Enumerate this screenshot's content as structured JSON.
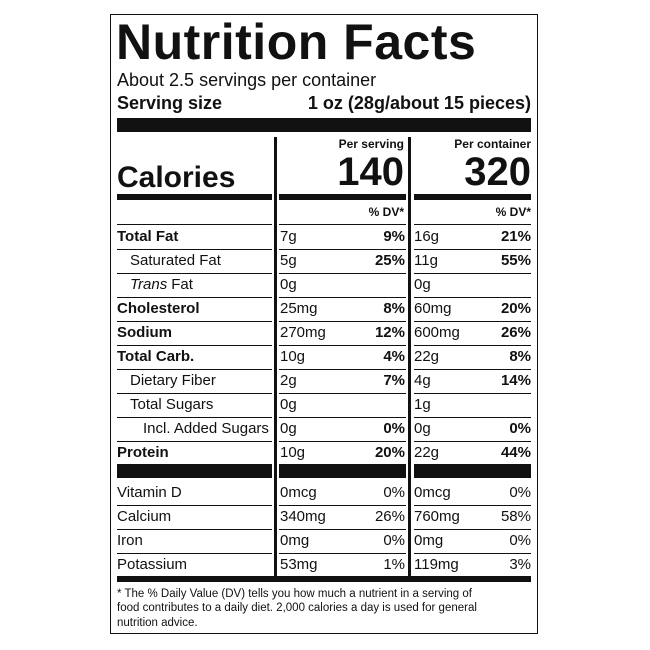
{
  "label": {
    "title": "Nutrition Facts",
    "servings": "About 2.5 servings per container",
    "serving_size_label": "Serving size",
    "serving_size_value": "1 oz (28g/about 15 pieces)",
    "per_serving": "Per serving",
    "per_container": "Per container",
    "calories_label": "Calories",
    "calories_serving": 140,
    "calories_container": 320,
    "dv_header": "% DV*",
    "rows": [
      {
        "name": "Total Fat",
        "bold": true,
        "indent": 0,
        "serving": "7g",
        "serving_dv": "9%",
        "container": "16g",
        "container_dv": "21%"
      },
      {
        "name": "Saturated Fat",
        "bold": false,
        "indent": 1,
        "serving": "5g",
        "serving_dv": "25%",
        "container": "11g",
        "container_dv": "55%"
      },
      {
        "name_italic": "Trans",
        "name": "Fat",
        "bold": false,
        "indent": 1,
        "serving": "0g",
        "container": "0g"
      },
      {
        "name": "Cholesterol",
        "bold": true,
        "indent": 0,
        "serving": "25mg",
        "serving_dv": "8%",
        "container": "60mg",
        "container_dv": "20%"
      },
      {
        "name": "Sodium",
        "bold": true,
        "indent": 0,
        "serving": "270mg",
        "serving_dv": "12%",
        "container": "600mg",
        "container_dv": "26%"
      },
      {
        "name": "Total Carb.",
        "bold": true,
        "indent": 0,
        "serving": "10g",
        "serving_dv": "4%",
        "container": "22g",
        "container_dv": "8%"
      },
      {
        "name": "Dietary Fiber",
        "bold": false,
        "indent": 1,
        "serving": "2g",
        "serving_dv": "7%",
        "container": "4g",
        "container_dv": "14%"
      },
      {
        "name": "Total Sugars",
        "bold": false,
        "indent": 1,
        "serving": "0g",
        "container": "1g"
      },
      {
        "name": "Incl. Added Sugars",
        "bold": false,
        "indent": 2,
        "serving": "0g",
        "serving_dv": "0%",
        "container": "0g",
        "container_dv": "0%"
      },
      {
        "name": "Protein",
        "bold": true,
        "indent": 0,
        "serving": "10g",
        "serving_dv": "20%",
        "container": "22g",
        "container_dv": "44%"
      }
    ],
    "vitamins": [
      {
        "name": "Vitamin D",
        "serving": "0mcg",
        "serving_dv": "0%",
        "container": "0mcg",
        "container_dv": "0%"
      },
      {
        "name": "Calcium",
        "serving": "340mg",
        "serving_dv": "26%",
        "container": "760mg",
        "container_dv": "58%"
      },
      {
        "name": "Iron",
        "serving": "0mg",
        "serving_dv": "0%",
        "container": "0mg",
        "container_dv": "0%"
      },
      {
        "name": "Potassium",
        "serving": "53mg",
        "serving_dv": "1%",
        "container": "119mg",
        "container_dv": "3%"
      }
    ],
    "footnote": [
      "* The % Daily Value (DV) tells you how much a nutrient in a serving of",
      "food contributes to a daily diet. 2,000 calories a day is used for general",
      "nutrition advice."
    ]
  }
}
